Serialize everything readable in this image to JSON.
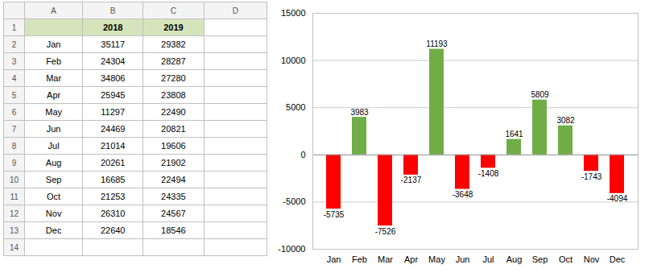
{
  "chart_data": [
    {
      "type": "table",
      "color": "#d6e4bc",
      "col_letters": [
        "A",
        "B",
        "C",
        "D"
      ],
      "row_numbers": [
        1,
        2,
        3,
        4,
        5,
        6,
        7,
        8,
        9,
        10,
        11,
        12,
        13,
        14
      ],
      "rows": [
        [
          null,
          "2018",
          "2019",
          null
        ],
        [
          "Jan",
          35117,
          29382,
          null
        ],
        [
          "Feb",
          24304,
          28287,
          null
        ],
        [
          "Mar",
          34806,
          27280,
          null
        ],
        [
          "Apr",
          25945,
          23808,
          null
        ],
        [
          "May",
          11297,
          22490,
          null
        ],
        [
          "Jun",
          24469,
          20821,
          null
        ],
        [
          "Jul",
          21014,
          19606,
          null
        ],
        [
          "Aug",
          20261,
          21902,
          null
        ],
        [
          "Sep",
          16685,
          22494,
          null
        ],
        [
          "Oct",
          21253,
          24335,
          null
        ],
        [
          "Nov",
          26310,
          24567,
          null
        ],
        [
          "Dec",
          22640,
          18546,
          null
        ],
        [
          null,
          null,
          null,
          null
        ]
      ]
    },
    {
      "type": "bar",
      "categories": [
        "Jan",
        "Feb",
        "Mar",
        "Apr",
        "May",
        "Jun",
        "Jul",
        "Aug",
        "Sep",
        "Oct",
        "Nov",
        "Dec"
      ],
      "values": [
        -5735,
        3983,
        -7526,
        -2137,
        11193,
        -3648,
        -1408,
        1641,
        5809,
        3082,
        -1743,
        -4094
      ],
      "colors": [
        "#ff0000",
        "#70ad47",
        "#ff0000",
        "#ff0000",
        "#70ad47",
        "#ff0000",
        "#ff0000",
        "#70ad47",
        "#70ad47",
        "#70ad47",
        "#ff0000",
        "#ff0000"
      ],
      "ylim": [
        -10000,
        15000
      ],
      "yticks": [
        -10000,
        -5000,
        0,
        5000,
        10000,
        15000
      ],
      "grid": true,
      "data_labels": true
    }
  ]
}
